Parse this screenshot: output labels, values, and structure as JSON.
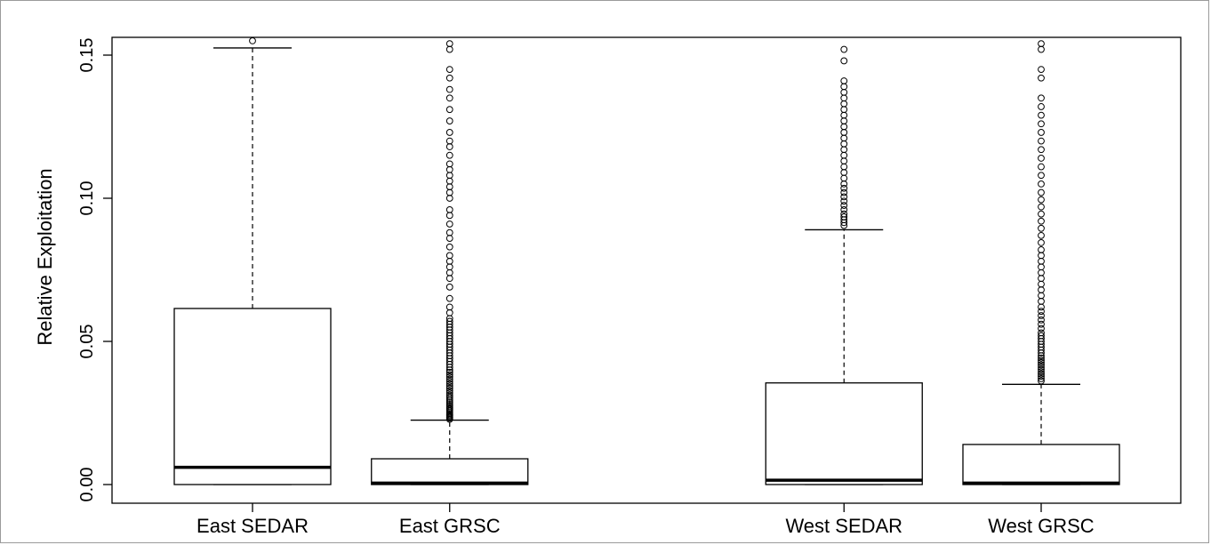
{
  "chart_data": {
    "type": "boxplot",
    "title": "",
    "xlabel": "",
    "ylabel": "Relative Exploitation",
    "ylim": [
      -0.0065,
      0.155
    ],
    "yticks": [
      0.0,
      0.05,
      0.1,
      0.15
    ],
    "ytick_labels": [
      "0.00",
      "0.05",
      "0.10",
      "0.15"
    ],
    "grid": false,
    "boxes": [
      {
        "label": "East SEDAR",
        "position": 1,
        "whisker_low": 0.0,
        "q1": 0.0,
        "median": 0.006,
        "q3": 0.0615,
        "whisker_high": 0.1525,
        "outliers": [
          0.155
        ]
      },
      {
        "label": "East GRSC",
        "position": 2,
        "whisker_low": 0.0,
        "q1": 0.0,
        "median": 0.0005,
        "q3": 0.009,
        "whisker_high": 0.0225,
        "outliers": [
          0.0228,
          0.0232,
          0.0236,
          0.024,
          0.0244,
          0.0248,
          0.0253,
          0.0258,
          0.0263,
          0.0268,
          0.0274,
          0.028,
          0.0286,
          0.0292,
          0.0298,
          0.0305,
          0.0312,
          0.032,
          0.0328,
          0.0336,
          0.0344,
          0.0352,
          0.036,
          0.0368,
          0.0376,
          0.0384,
          0.0392,
          0.04,
          0.041,
          0.042,
          0.043,
          0.044,
          0.045,
          0.046,
          0.047,
          0.048,
          0.049,
          0.05,
          0.051,
          0.052,
          0.053,
          0.054,
          0.055,
          0.056,
          0.057,
          0.058,
          0.06,
          0.062,
          0.065,
          0.069,
          0.072,
          0.074,
          0.076,
          0.078,
          0.08,
          0.083,
          0.086,
          0.088,
          0.091,
          0.094,
          0.096,
          0.1,
          0.102,
          0.104,
          0.106,
          0.108,
          0.11,
          0.112,
          0.115,
          0.118,
          0.12,
          0.123,
          0.127,
          0.131,
          0.135,
          0.138,
          0.142,
          0.145,
          0.152,
          0.154
        ]
      },
      {
        "label": "West SEDAR",
        "position": 4,
        "whisker_low": 0.0,
        "q1": 0.0,
        "median": 0.0015,
        "q3": 0.0355,
        "whisker_high": 0.089,
        "outliers": [
          0.0905,
          0.0915,
          0.0925,
          0.0935,
          0.0945,
          0.096,
          0.0975,
          0.099,
          0.1005,
          0.102,
          0.1035,
          0.105,
          0.107,
          0.109,
          0.111,
          0.113,
          0.115,
          0.117,
          0.119,
          0.121,
          0.123,
          0.125,
          0.127,
          0.129,
          0.131,
          0.133,
          0.135,
          0.137,
          0.139,
          0.141,
          0.148,
          0.152
        ]
      },
      {
        "label": "West GRSC",
        "position": 5,
        "whisker_low": 0.0,
        "q1": 0.0,
        "median": 0.0005,
        "q3": 0.014,
        "whisker_high": 0.035,
        "outliers": [
          0.0362,
          0.037,
          0.0378,
          0.0386,
          0.0394,
          0.0402,
          0.041,
          0.0418,
          0.0426,
          0.0434,
          0.0442,
          0.045,
          0.046,
          0.047,
          0.048,
          0.049,
          0.05,
          0.051,
          0.052,
          0.053,
          0.0545,
          0.056,
          0.0575,
          0.059,
          0.0605,
          0.062,
          0.064,
          0.066,
          0.068,
          0.07,
          0.072,
          0.074,
          0.076,
          0.078,
          0.08,
          0.082,
          0.0845,
          0.087,
          0.0895,
          0.092,
          0.0945,
          0.097,
          0.0995,
          0.102,
          0.105,
          0.108,
          0.111,
          0.114,
          0.117,
          0.12,
          0.123,
          0.126,
          0.129,
          0.132,
          0.135,
          0.142,
          0.145,
          0.152,
          0.154
        ]
      }
    ]
  }
}
